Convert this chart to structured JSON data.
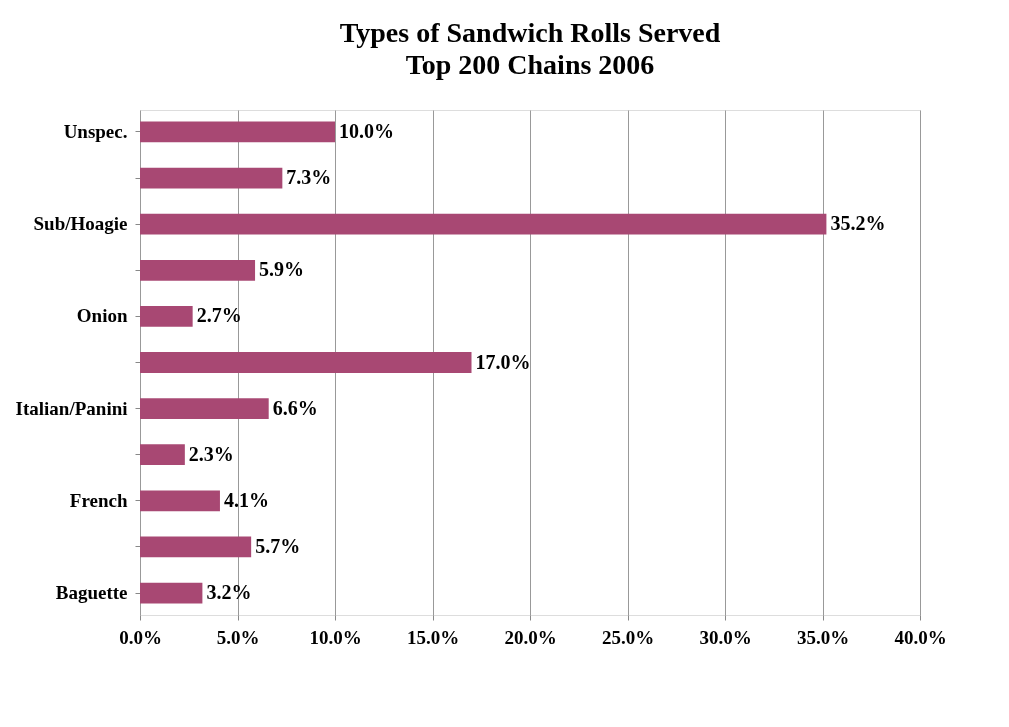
{
  "chart_data": {
    "type": "bar",
    "orientation": "horizontal",
    "title": "Types of Sandwich Rolls Served",
    "subtitle": "Top 200 Chains 2006",
    "categories": [
      "Unspec.",
      null,
      "Sub/Hoagie",
      null,
      "Onion",
      null,
      "Italian/Panini",
      null,
      "French",
      null,
      "Baguette"
    ],
    "values": [
      10.0,
      7.3,
      35.2,
      5.9,
      2.7,
      17.0,
      6.6,
      2.3,
      4.1,
      5.7,
      3.2
    ],
    "value_labels": [
      "10.0%",
      "7.3%",
      "35.2%",
      "5.9%",
      "2.7%",
      "17.0%",
      "6.6%",
      "2.3%",
      "4.1%",
      "5.7%",
      "3.2%"
    ],
    "color": "#a84873",
    "xlim": [
      0,
      40
    ],
    "xticks": [
      {
        "value": 0,
        "label": "0.0%"
      },
      {
        "value": 5,
        "label": "5.0%"
      },
      {
        "value": 10,
        "label": "10.0%"
      },
      {
        "value": 15,
        "label": "15.0%"
      },
      {
        "value": 20,
        "label": "20.0%"
      },
      {
        "value": 25,
        "label": "25.0%"
      },
      {
        "value": 30,
        "label": "30.0%"
      },
      {
        "value": 35,
        "label": "35.0%"
      },
      {
        "value": 40,
        "label": "40.0%"
      }
    ],
    "grid": "x"
  }
}
